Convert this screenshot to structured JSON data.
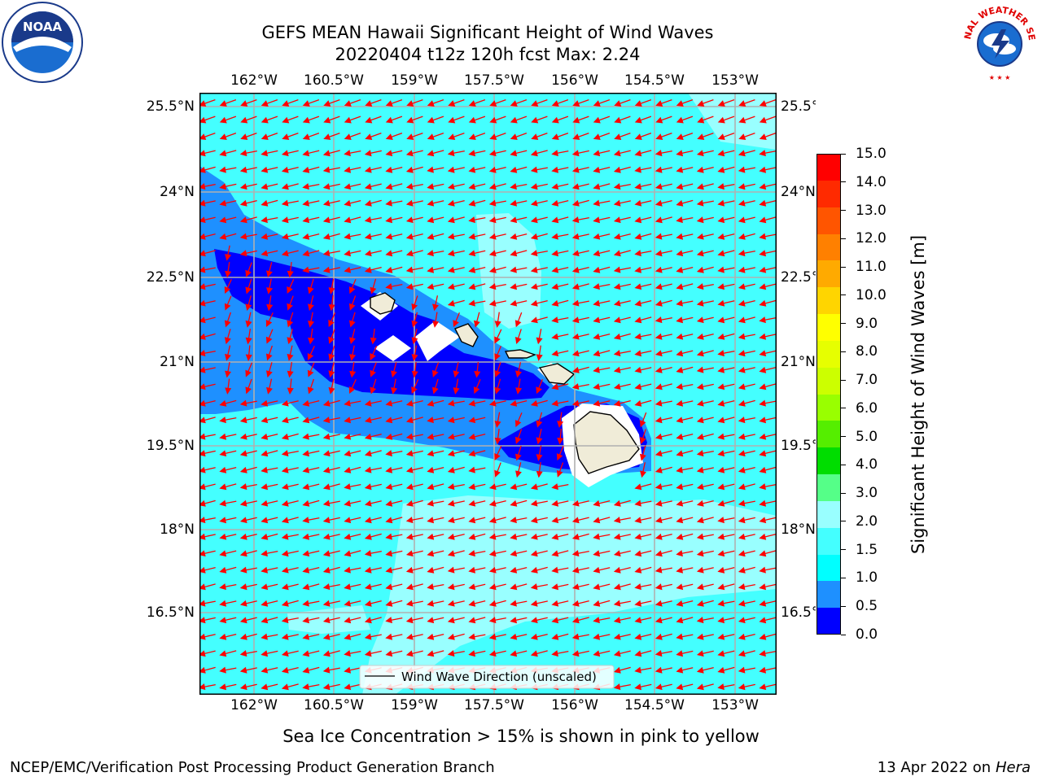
{
  "title": {
    "line1": "GEFS MEAN Hawaii Significant Height of Wind Waves",
    "line2": "20220404 t12z 120h fcst   Max: 2.24"
  },
  "map": {
    "lon_ticks": [
      "162°W",
      "160.5°W",
      "159°W",
      "157.5°W",
      "156°W",
      "154.5°W",
      "153°W"
    ],
    "lat_ticks": [
      "25.5°N",
      "24°N",
      "22.5°N",
      "21°N",
      "19.5°N",
      "18°N",
      "16.5°N"
    ],
    "legend": "Wind Wave Direction (unscaled)"
  },
  "colorbar": {
    "label": "Significant Height of Wind Waves [m]",
    "ticks": [
      "15.0",
      "14.0",
      "13.0",
      "12.0",
      "11.0",
      "10.0",
      "9.0",
      "8.0",
      "7.0",
      "6.0",
      "5.0",
      "4.0",
      "3.0",
      "2.0",
      "1.5",
      "1.0",
      "0.5",
      "0.0"
    ],
    "colors": [
      "#ff0000",
      "#ff2a00",
      "#ff5500",
      "#ff8000",
      "#ffaa00",
      "#ffd500",
      "#ffff00",
      "#e6ff00",
      "#ccff00",
      "#99ff00",
      "#55ee00",
      "#00dd00",
      "#55ff88",
      "#99ffff",
      "#44ffff",
      "#00ffff",
      "#1e90ff",
      "#0000ff"
    ],
    "colors_note": "bottom-to-top order reversed: first color is top segment"
  },
  "note": "Sea Ice Concentration > 15% is shown in pink to yellow",
  "footer": {
    "left": "NCEP/EMC/Verification Post Processing Product Generation Branch",
    "right_prefix": "13 Apr 2022 on ",
    "right_italic": "Hera"
  },
  "logos": {
    "noaa": "NOAA",
    "nws": "NATIONAL WEATHER SERVICE"
  },
  "colors": {
    "wave_light": "#99ffff",
    "wave_cyan": "#44ffff",
    "wave_mid": "#1e90ff",
    "wave_deep": "#0000ff",
    "land": "#f0ecd8",
    "arrow": "#ff0000"
  }
}
